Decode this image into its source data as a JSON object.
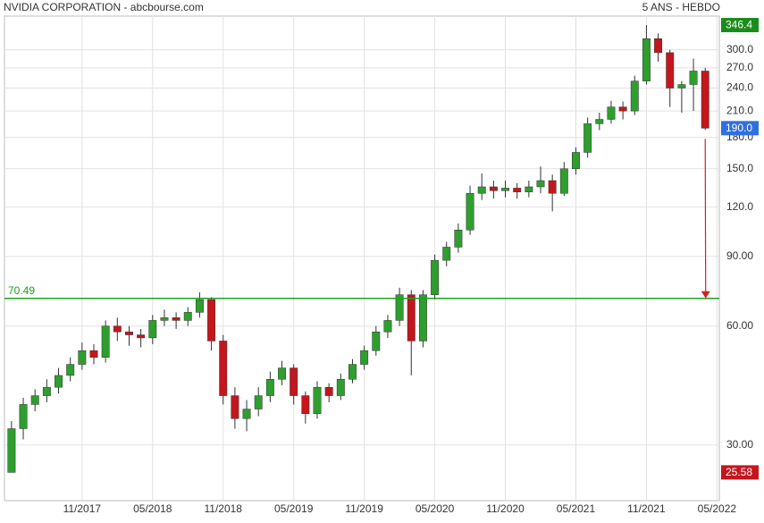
{
  "chart_data": {
    "type": "candlestick",
    "title": "NVIDIA CORPORATION - abcbourse.com",
    "subtitle": "5 ANS - HEBDO",
    "log_scale": true,
    "grid": true,
    "up_color": "#2e9e2e",
    "down_color": "#c4161c",
    "open": [
      25.58,
      33,
      38,
      40,
      42,
      45,
      48,
      52,
      50,
      60,
      58,
      57,
      56,
      62,
      63,
      62,
      65,
      70,
      55,
      40,
      35,
      37,
      40,
      44,
      47,
      40,
      36,
      42,
      40,
      44,
      48,
      52,
      58,
      62,
      72,
      55,
      72,
      88,
      95,
      105,
      130,
      135,
      132,
      134,
      131,
      135,
      140,
      130,
      150,
      165,
      195,
      200,
      215,
      210,
      250,
      320,
      295,
      240,
      245,
      265
    ],
    "high": [
      34.5,
      39.5,
      41.5,
      44,
      47,
      50,
      54.5,
      54,
      62,
      63,
      60,
      59,
      64,
      66,
      65,
      67,
      73,
      71,
      57,
      42,
      39,
      42,
      46,
      49,
      48,
      41,
      43.5,
      43,
      45.5,
      49.5,
      53.5,
      60,
      64,
      75,
      74,
      74,
      91,
      98,
      109,
      136,
      146,
      140,
      140,
      138,
      140,
      152,
      145,
      156,
      170,
      202,
      208,
      223,
      222,
      258,
      346.4,
      330,
      300,
      250,
      285,
      270
    ],
    "low": [
      25.58,
      31,
      36.5,
      38.5,
      40.5,
      43.5,
      46.5,
      48,
      48.5,
      55,
      53.5,
      53,
      54,
      60,
      59,
      60,
      63,
      52,
      38,
      33,
      32.5,
      35.5,
      38.5,
      42.5,
      38,
      34,
      35,
      38.5,
      39,
      43,
      46.5,
      50.5,
      56,
      60,
      45,
      53,
      70,
      85,
      92,
      102,
      125,
      126,
      127,
      126,
      127,
      130,
      117,
      128,
      145,
      160,
      188,
      195,
      200,
      205,
      245,
      280,
      215,
      208,
      210,
      188
    ],
    "close": [
      33,
      38,
      40,
      42,
      45,
      48,
      52,
      50,
      60,
      58,
      57,
      56,
      62,
      63,
      62,
      65,
      70,
      55,
      40,
      35,
      37,
      40,
      44,
      47,
      40,
      36,
      42,
      40,
      44,
      48,
      52,
      58,
      62,
      72,
      55,
      72,
      88,
      95,
      105,
      130,
      135,
      132,
      134,
      131,
      135,
      140,
      130,
      150,
      165,
      195,
      200,
      215,
      210,
      250,
      320,
      295,
      240,
      245,
      265,
      190
    ],
    "xlim": [
      -0.6,
      60.2
    ],
    "xticks": [
      {
        "value": 6,
        "label": "11/2017"
      },
      {
        "value": 12,
        "label": "05/2018"
      },
      {
        "value": 18,
        "label": "11/2018"
      },
      {
        "value": 24,
        "label": "05/2019"
      },
      {
        "value": 30,
        "label": "11/2019"
      },
      {
        "value": 36,
        "label": "05/2020"
      },
      {
        "value": 42,
        "label": "11/2020"
      },
      {
        "value": 48,
        "label": "05/2021"
      },
      {
        "value": 54,
        "label": "11/2021"
      },
      {
        "value": 60,
        "label": "05/2022"
      }
    ],
    "ylim": [
      21.7,
      365
    ],
    "yticks": [
      {
        "value": 30,
        "label": "30.00"
      },
      {
        "value": 60,
        "label": "60.00"
      },
      {
        "value": 90,
        "label": "90.00"
      },
      {
        "value": 120,
        "label": "120.0"
      },
      {
        "value": 150,
        "label": "150.0"
      },
      {
        "value": 180,
        "label": "180.0"
      },
      {
        "value": 210,
        "label": "210.0"
      },
      {
        "value": 240,
        "label": "240.0"
      },
      {
        "value": 270,
        "label": "270.0"
      },
      {
        "value": 300,
        "label": "300.0"
      }
    ],
    "reference_level": 70.49,
    "reference_color": "#1fa01f",
    "period_high": 346.4,
    "period_low": 25.58,
    "last_price": {
      "value": 190,
      "label": "190.0"
    },
    "high_color": "#1a8c1a",
    "last_color": "#2f6fe0",
    "low_color": "#c4161c",
    "arrow_color": "#d42020"
  }
}
